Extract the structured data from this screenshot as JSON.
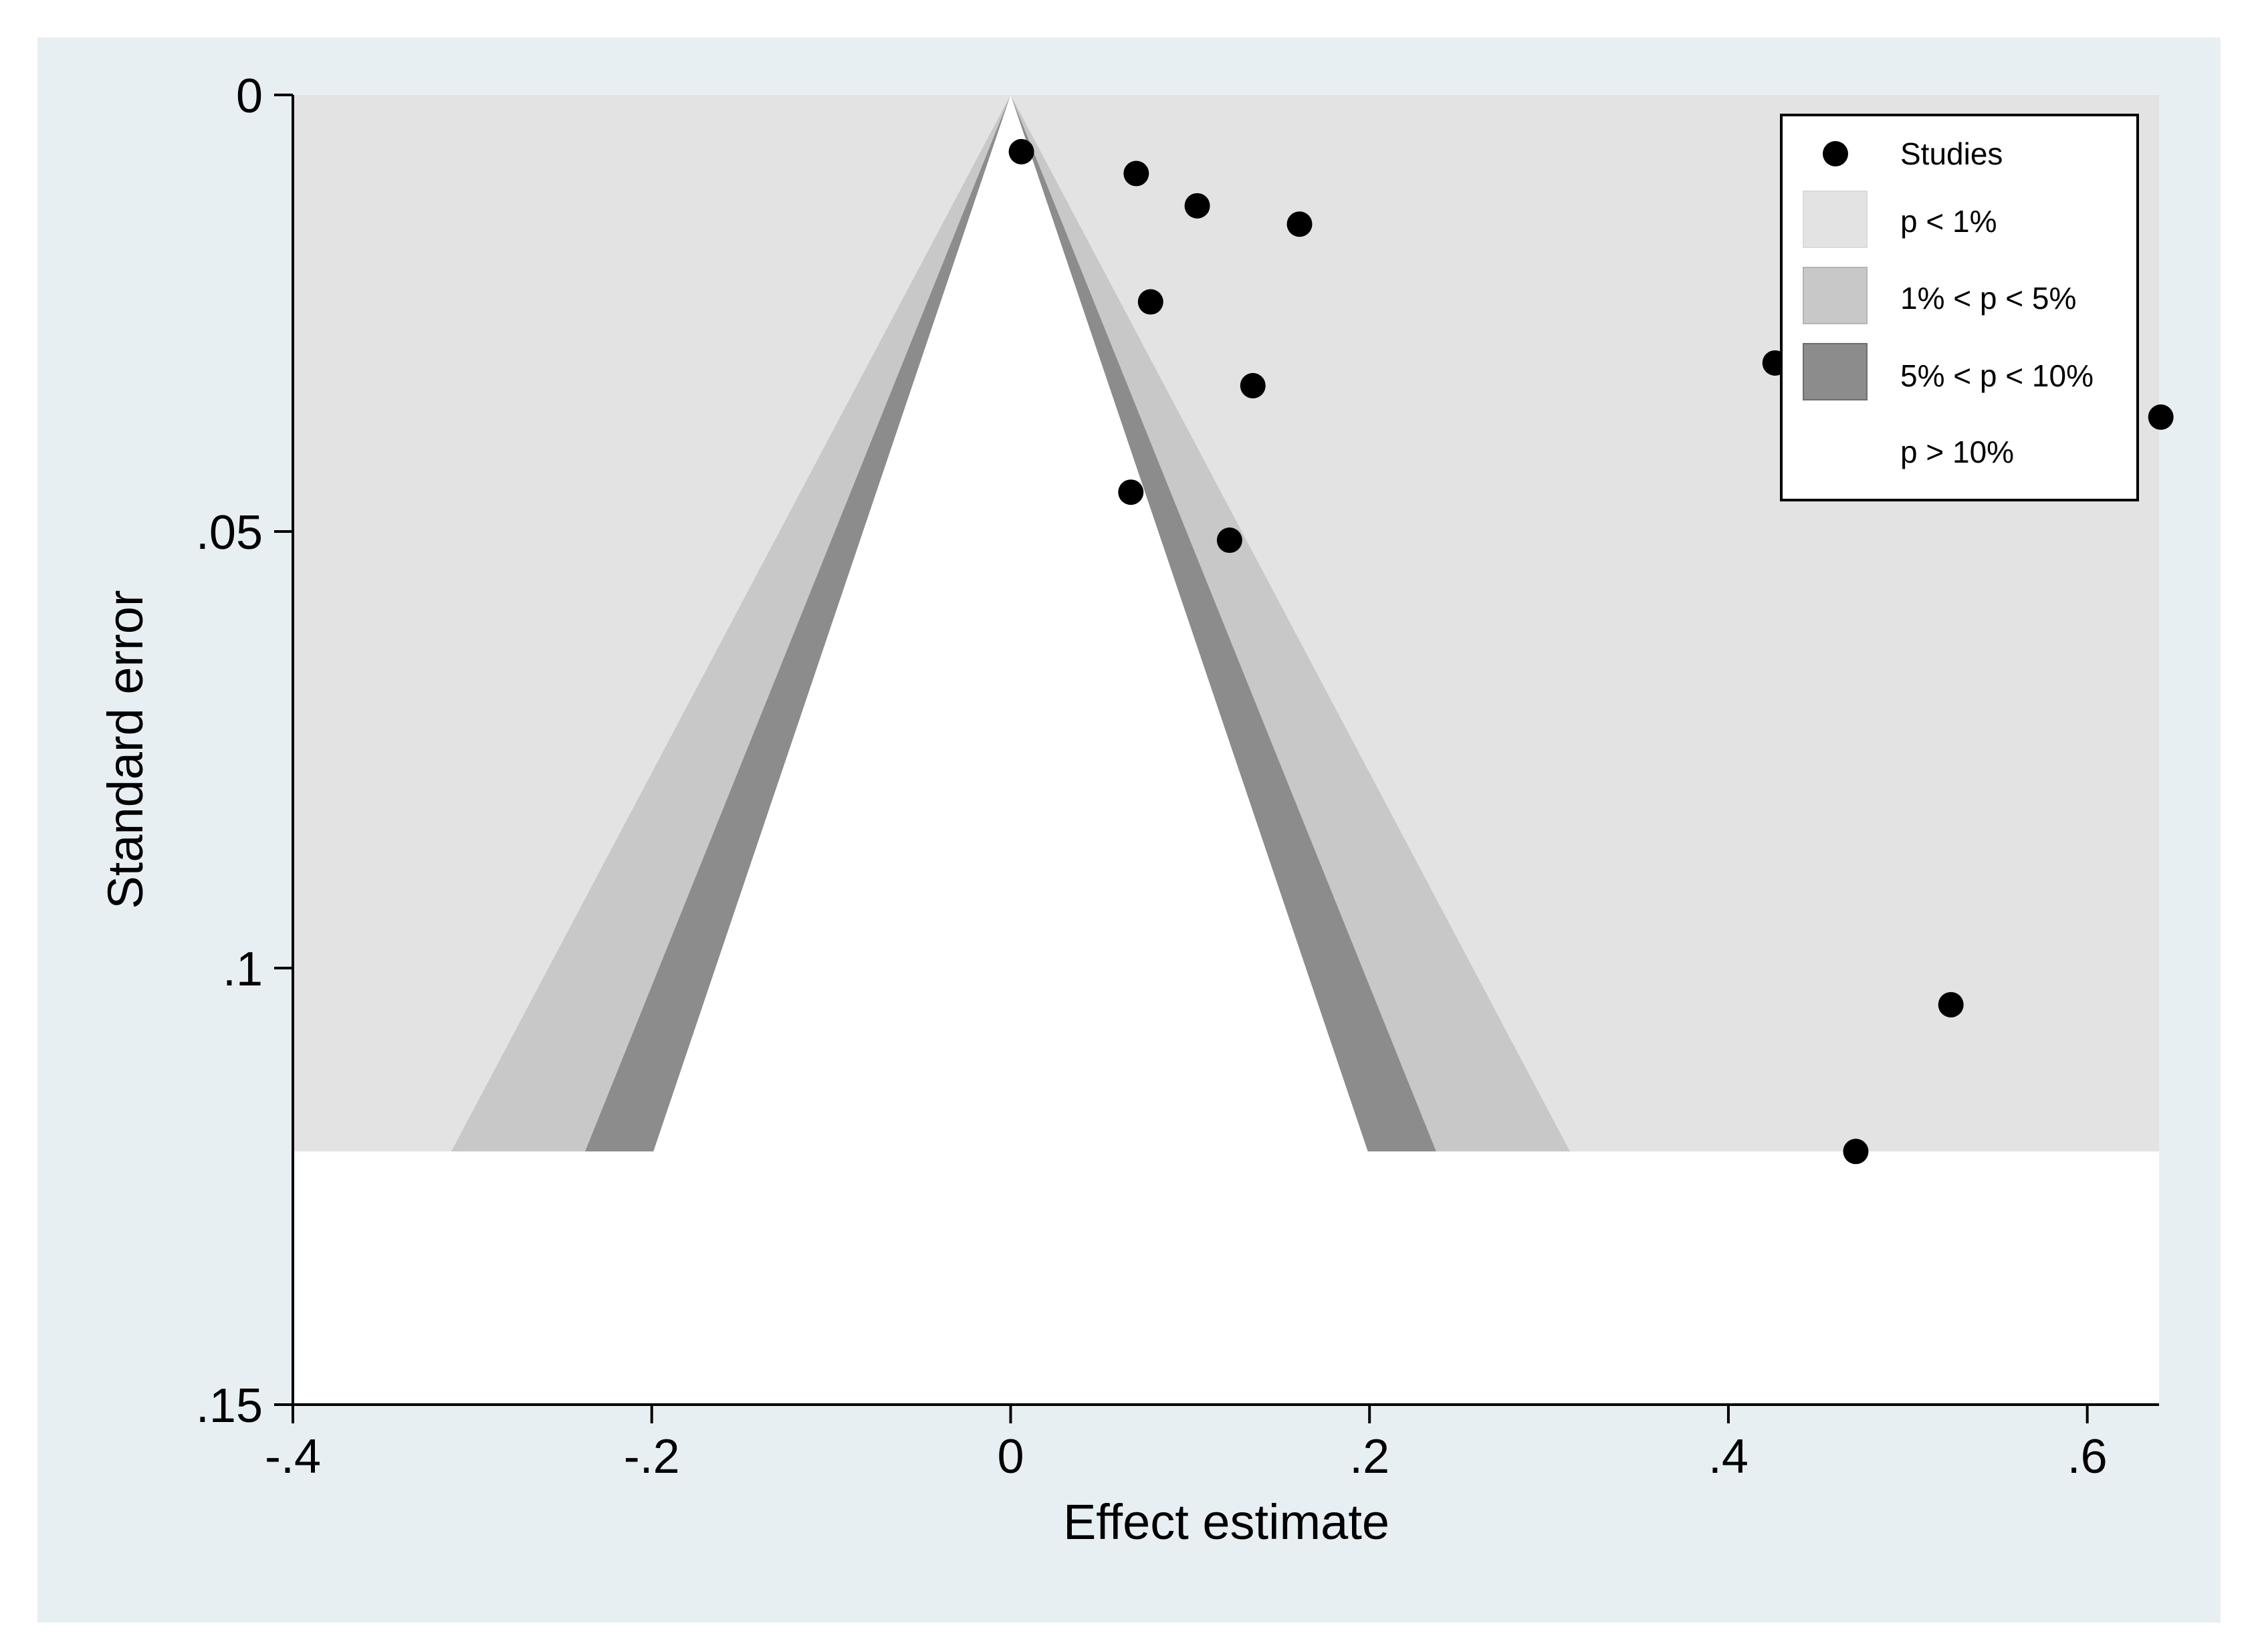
{
  "chart_data": {
    "type": "scatter",
    "title": "",
    "xlabel": "Effect estimate",
    "ylabel": "Standard error",
    "xlim": [
      -0.4,
      0.64
    ],
    "ylim": [
      0,
      0.15
    ],
    "y_inverted": true,
    "funnel_max_se": 0.121,
    "x_ticks": [
      {
        "value": -0.4,
        "label": "-.4"
      },
      {
        "value": -0.2,
        "label": "-.2"
      },
      {
        "value": 0,
        "label": "0"
      },
      {
        "value": 0.2,
        "label": ".2"
      },
      {
        "value": 0.4,
        "label": ".4"
      },
      {
        "value": 0.6,
        "label": ".6"
      }
    ],
    "y_ticks": [
      {
        "value": 0,
        "label": "0"
      },
      {
        "value": 0.05,
        "label": ".05"
      },
      {
        "value": 0.1,
        "label": ".1"
      },
      {
        "value": 0.15,
        "label": ".15"
      }
    ],
    "contours": [
      {
        "name": "1% < p < 5%",
        "z_inner": 1.96,
        "z_outer": 2.576,
        "color": "#c8c8c8"
      },
      {
        "name": "5% < p < 10%",
        "z_inner": 1.645,
        "z_outer": 1.96,
        "color": "#8c8c8c"
      }
    ],
    "outer_region_color": "#e3e3e3",
    "series": [
      {
        "name": "Studies",
        "points": [
          {
            "x": 0.006,
            "y": 0.0065
          },
          {
            "x": 0.07,
            "y": 0.009
          },
          {
            "x": 0.104,
            "y": 0.0127
          },
          {
            "x": 0.161,
            "y": 0.0148
          },
          {
            "x": 0.078,
            "y": 0.0237
          },
          {
            "x": 0.135,
            "y": 0.0333
          },
          {
            "x": 0.067,
            "y": 0.0455
          },
          {
            "x": 0.122,
            "y": 0.051
          },
          {
            "x": 0.426,
            "y": 0.0307
          },
          {
            "x": 0.641,
            "y": 0.0369
          },
          {
            "x": 0.524,
            "y": 0.1042
          },
          {
            "x": 0.471,
            "y": 0.121
          }
        ]
      }
    ],
    "legend": {
      "position": "top-right",
      "items": [
        {
          "label": "Studies",
          "symbol": "dot",
          "color": "#000000"
        },
        {
          "label": "p < 1%",
          "symbol": "box",
          "color": "#e3e3e3"
        },
        {
          "label": "1% < p < 5%",
          "symbol": "box",
          "color": "#c8c8c8"
        },
        {
          "label": "5% < p < 10%",
          "symbol": "box",
          "color": "#8c8c8c"
        },
        {
          "label": "p > 10%",
          "symbol": "box",
          "color": "#ffffff"
        }
      ]
    }
  }
}
